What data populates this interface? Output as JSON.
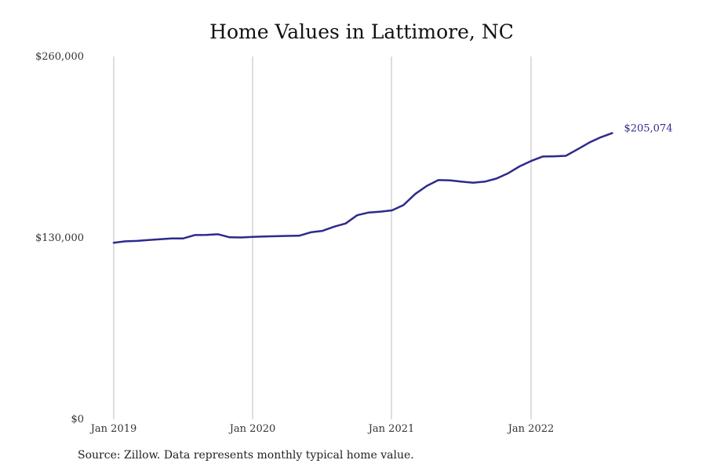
{
  "chart_data": {
    "type": "line",
    "title": "Home Values in Lattimore, NC",
    "xlabel": "",
    "ylabel": "",
    "x_ticks": [
      "Jan 2019",
      "Jan 2020",
      "Jan 2021",
      "Jan 2022"
    ],
    "y_ticks": [
      "$0",
      "$130,000",
      "$260,000"
    ],
    "y_tick_values": [
      0,
      130000,
      260000
    ],
    "ylim": [
      0,
      260000
    ],
    "xlim": [
      "2019-01",
      "2022-08"
    ],
    "grid": "vertical lines at each January",
    "legend": "none",
    "series": [
      {
        "color": "#2e2a8c",
        "x": [
          "2019-01",
          "2019-02",
          "2019-03",
          "2019-04",
          "2019-05",
          "2019-06",
          "2019-07",
          "2019-08",
          "2019-09",
          "2019-10",
          "2019-11",
          "2019-12",
          "2020-01",
          "2020-02",
          "2020-03",
          "2020-04",
          "2020-05",
          "2020-06",
          "2020-07",
          "2020-08",
          "2020-09",
          "2020-10",
          "2020-11",
          "2020-12",
          "2021-01",
          "2021-02",
          "2021-03",
          "2021-04",
          "2021-05",
          "2021-06",
          "2021-07",
          "2021-08",
          "2021-09",
          "2021-10",
          "2021-11",
          "2021-12",
          "2022-01",
          "2022-02",
          "2022-03",
          "2022-04",
          "2022-05",
          "2022-06",
          "2022-07",
          "2022-08"
        ],
        "values": [
          126500,
          127500,
          127800,
          128400,
          129000,
          129600,
          129600,
          132000,
          132100,
          132600,
          130400,
          130300,
          130700,
          131000,
          131200,
          131400,
          131500,
          134000,
          135000,
          138000,
          140300,
          146200,
          148200,
          148800,
          149700,
          153500,
          161400,
          167200,
          171400,
          171200,
          170300,
          169500,
          170300,
          172500,
          176200,
          181200,
          185100,
          188300,
          188500,
          188800,
          193400,
          198200,
          202100,
          205074
        ],
        "end_label": "$205,074"
      }
    ]
  },
  "footer": {
    "source": "Source: Zillow. Data represents monthly typical home value."
  }
}
